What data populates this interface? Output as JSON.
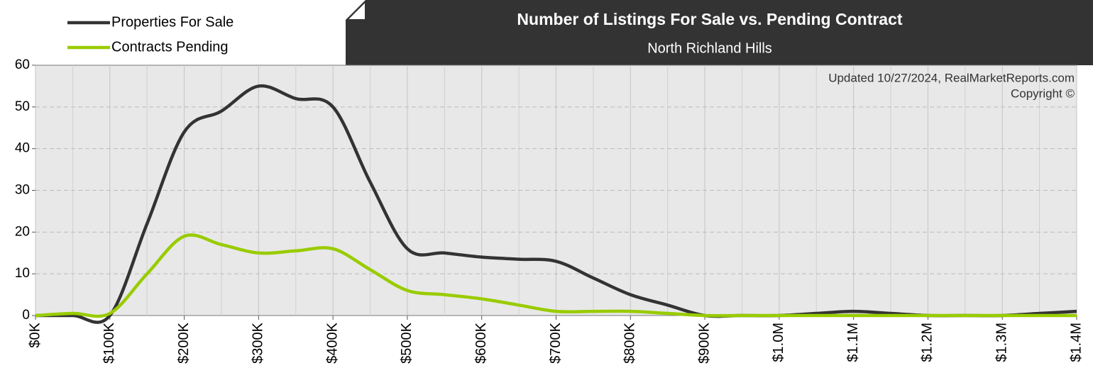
{
  "chart_data": {
    "type": "line",
    "title": "Number of Listings For Sale vs. Pending Contract",
    "subtitle": "North Richland Hills",
    "annotations": [
      "Updated 10/27/2024, RealMarketReports.com",
      "Copyright ©"
    ],
    "x": [
      0,
      50000,
      100000,
      150000,
      200000,
      250000,
      300000,
      350000,
      400000,
      450000,
      500000,
      550000,
      600000,
      650000,
      700000,
      750000,
      800000,
      850000,
      900000,
      950000,
      1000000,
      1050000,
      1100000,
      1150000,
      1200000,
      1250000,
      1300000,
      1350000,
      1400000
    ],
    "series": [
      {
        "name": "Properties For Sale",
        "color": "#333333",
        "values": [
          0,
          0,
          0,
          22,
          44,
          49,
          55,
          52,
          50,
          32,
          16,
          15,
          14,
          13.5,
          13,
          9,
          5,
          2.5,
          0,
          0,
          0,
          0.5,
          1,
          0.5,
          0,
          0,
          0,
          0.5,
          1
        ]
      },
      {
        "name": "Contracts Pending",
        "color": "#99cc00",
        "values": [
          0,
          0.5,
          0.5,
          10,
          19,
          17,
          15,
          15.5,
          16,
          11,
          6,
          5,
          4,
          2.5,
          1,
          1,
          1,
          0.5,
          0,
          0,
          0,
          0,
          0,
          0,
          0,
          0,
          0,
          0,
          0
        ]
      }
    ],
    "xlim": [
      0,
      1400000
    ],
    "xticks": [
      {
        "value": 0,
        "label": "$0K"
      },
      {
        "value": 100000,
        "label": "$100K"
      },
      {
        "value": 200000,
        "label": "$200K"
      },
      {
        "value": 300000,
        "label": "$300K"
      },
      {
        "value": 400000,
        "label": "$400K"
      },
      {
        "value": 500000,
        "label": "$500K"
      },
      {
        "value": 600000,
        "label": "$600K"
      },
      {
        "value": 700000,
        "label": "$700K"
      },
      {
        "value": 800000,
        "label": "$800K"
      },
      {
        "value": 900000,
        "label": "$900K"
      },
      {
        "value": 1000000,
        "label": "$1.0M"
      },
      {
        "value": 1100000,
        "label": "$1.1M"
      },
      {
        "value": 1200000,
        "label": "$1.2M"
      },
      {
        "value": 1300000,
        "label": "$1.3M"
      },
      {
        "value": 1400000,
        "label": "$1.4M"
      }
    ],
    "ylim": [
      0,
      60
    ],
    "yticks": [
      0,
      10,
      20,
      30,
      40,
      50,
      60
    ],
    "grid": true,
    "legend": "top-left"
  }
}
